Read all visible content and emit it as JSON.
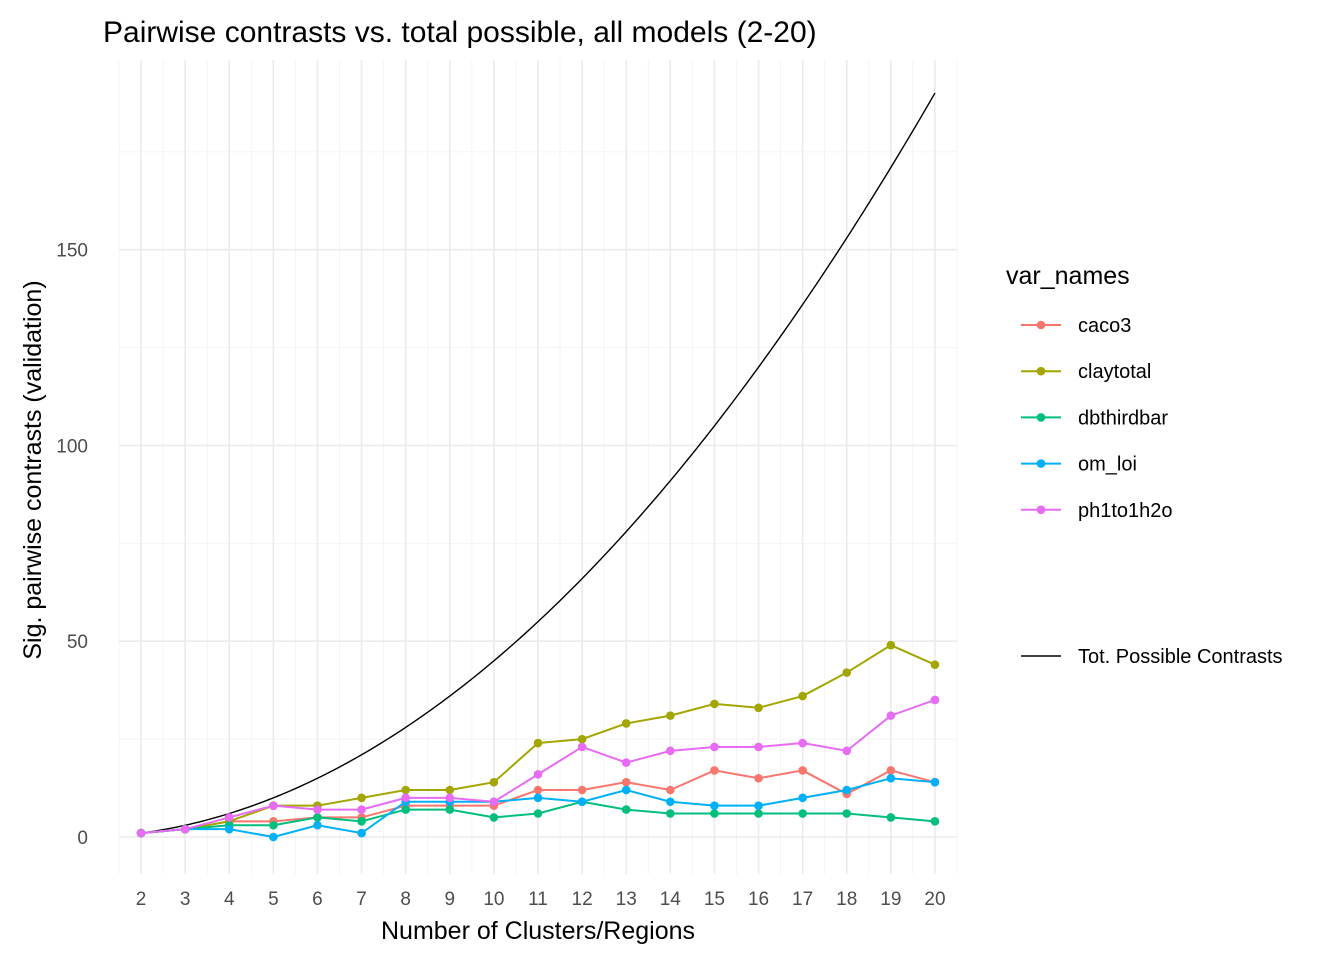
{
  "chart_data": {
    "type": "line",
    "title": "Pairwise contrasts vs. total possible, all models (2-20)",
    "xlabel": "Number of Clusters/Regions",
    "ylabel": "Sig. pairwise contrasts (validation)",
    "x": [
      2,
      3,
      4,
      5,
      6,
      7,
      8,
      9,
      10,
      11,
      12,
      13,
      14,
      15,
      16,
      17,
      18,
      19,
      20
    ],
    "x_ticks": [
      "2",
      "3",
      "4",
      "5",
      "6",
      "7",
      "8",
      "9",
      "10",
      "11",
      "12",
      "13",
      "14",
      "15",
      "16",
      "17",
      "18",
      "19",
      "20"
    ],
    "y_ticks": [
      "0",
      "50",
      "100",
      "150"
    ],
    "xlim": [
      1.5,
      20.5
    ],
    "ylim": [
      -9.45,
      198.45
    ],
    "grid": true,
    "legend_position": "right",
    "legend_title": "var_names",
    "series": [
      {
        "name": "caco3",
        "color": "#F8766D",
        "values": [
          1,
          2,
          4,
          4,
          5,
          5,
          8,
          8,
          8,
          12,
          12,
          14,
          12,
          17,
          15,
          17,
          11,
          17,
          14
        ]
      },
      {
        "name": "claytotal",
        "color": "#A3A500",
        "values": [
          1,
          2,
          4,
          8,
          8,
          10,
          12,
          12,
          14,
          24,
          25,
          29,
          31,
          34,
          33,
          36,
          42,
          49,
          44
        ]
      },
      {
        "name": "dbthirdbar",
        "color": "#00BF7D",
        "values": [
          1,
          2,
          3,
          3,
          5,
          4,
          7,
          7,
          5,
          6,
          9,
          7,
          6,
          6,
          6,
          6,
          6,
          5,
          4
        ]
      },
      {
        "name": "om_loi",
        "color": "#00B0F6",
        "values": [
          1,
          2,
          2,
          0,
          3,
          1,
          9,
          9,
          9,
          10,
          9,
          12,
          9,
          8,
          8,
          10,
          12,
          15,
          14
        ]
      },
      {
        "name": "ph1to1h2o",
        "color": "#E76BF3",
        "values": [
          1,
          2,
          5,
          8,
          7,
          7,
          10,
          10,
          9,
          16,
          23,
          19,
          22,
          23,
          23,
          24,
          22,
          31,
          35
        ]
      }
    ],
    "reference_line": {
      "name": "Tot. Possible Contrasts",
      "color": "#000000",
      "values": [
        1,
        3,
        6,
        10,
        15,
        21,
        28,
        36,
        45,
        55,
        66,
        78,
        91,
        105,
        120,
        136,
        153,
        171,
        190
      ]
    }
  }
}
